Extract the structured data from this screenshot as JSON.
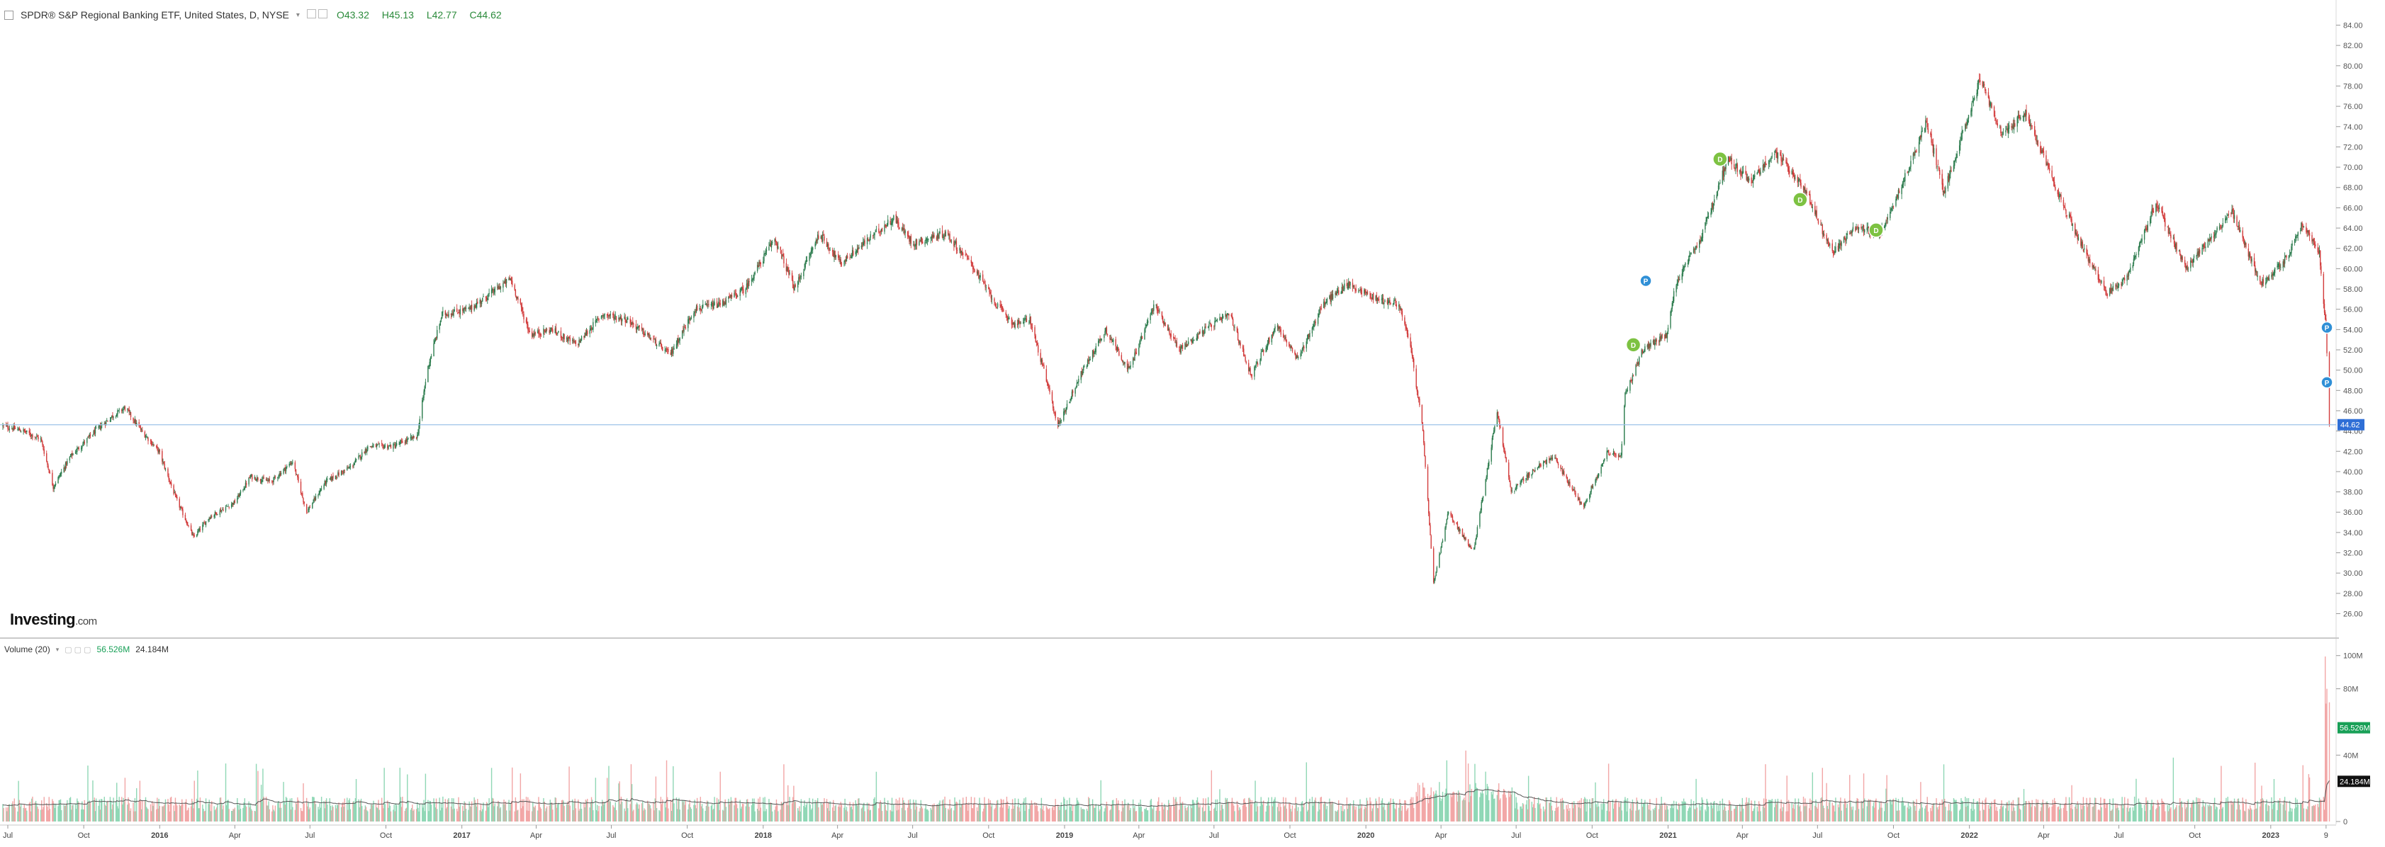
{
  "header": {
    "title": "SPDR® S&P Regional Banking ETF, United States, D, NYSE",
    "open": "O43.32",
    "high": "H45.13",
    "low": "L42.77",
    "close": "C44.62"
  },
  "logo": {
    "name": "Investing",
    "suffix": ".com"
  },
  "volume_header": {
    "label": "Volume (20)",
    "value1": "56.526M",
    "value2": "24.184M"
  },
  "current_price_label": "44.62",
  "volume_badges": {
    "green": "56.526M",
    "black": "24.184M"
  },
  "colors": {
    "up": "#2e7d4f",
    "down": "#d23c3c",
    "price_line": "#9ec3e8",
    "badge_blue": "#2f6fd6",
    "vol_up": "#8fd7b5",
    "vol_down": "#f2a6a6"
  },
  "markers": [
    {
      "type": "D",
      "date": "2020-11-20",
      "price": 52.5,
      "color": "#7dc242"
    },
    {
      "type": "D",
      "date": "2021-03-05",
      "price": 70.8,
      "color": "#7dc242"
    },
    {
      "type": "D",
      "date": "2021-06-10",
      "price": 66.8,
      "color": "#7dc242"
    },
    {
      "type": "D",
      "date": "2021-09-10",
      "price": 63.8,
      "color": "#7dc242"
    },
    {
      "type": "P",
      "date": "2020-12-05",
      "price": 58.8,
      "color": "#2f8fd6"
    },
    {
      "type": "P",
      "date": "2023-03-10",
      "price": 54.2,
      "color": "#2f8fd6"
    },
    {
      "type": "P",
      "date": "2023-03-10",
      "price": 48.8,
      "color": "#2f8fd6"
    }
  ],
  "chart_data": {
    "type": "candlestick",
    "title": "SPDR® S&P Regional Banking ETF, United States, D, NYSE",
    "y_ticks": [
      26,
      28,
      30,
      32,
      34,
      36,
      38,
      40,
      42,
      44,
      46,
      48,
      50,
      52,
      54,
      56,
      58,
      60,
      62,
      64,
      66,
      68,
      70,
      72,
      74,
      76,
      78,
      80,
      82,
      84
    ],
    "y_range": [
      24.5,
      85.5
    ],
    "x_ticks": [
      {
        "label": "Jul",
        "date": "2015-07-01"
      },
      {
        "label": "Oct",
        "date": "2015-10-01"
      },
      {
        "label": "2016",
        "date": "2016-01-01"
      },
      {
        "label": "Apr",
        "date": "2016-04-01"
      },
      {
        "label": "Jul",
        "date": "2016-07-01"
      },
      {
        "label": "Oct",
        "date": "2016-10-01"
      },
      {
        "label": "2017",
        "date": "2017-01-01"
      },
      {
        "label": "Apr",
        "date": "2017-04-01"
      },
      {
        "label": "Jul",
        "date": "2017-07-01"
      },
      {
        "label": "Oct",
        "date": "2017-10-01"
      },
      {
        "label": "2018",
        "date": "2018-01-01"
      },
      {
        "label": "Apr",
        "date": "2018-04-01"
      },
      {
        "label": "Jul",
        "date": "2018-07-01"
      },
      {
        "label": "Oct",
        "date": "2018-10-01"
      },
      {
        "label": "2019",
        "date": "2019-01-01"
      },
      {
        "label": "Apr",
        "date": "2019-04-01"
      },
      {
        "label": "Jul",
        "date": "2019-07-01"
      },
      {
        "label": "Oct",
        "date": "2019-10-01"
      },
      {
        "label": "2020",
        "date": "2020-01-01"
      },
      {
        "label": "Apr",
        "date": "2020-04-01"
      },
      {
        "label": "Jul",
        "date": "2020-07-01"
      },
      {
        "label": "Oct",
        "date": "2020-10-01"
      },
      {
        "label": "2021",
        "date": "2021-01-01"
      },
      {
        "label": "Apr",
        "date": "2021-04-01"
      },
      {
        "label": "Jul",
        "date": "2021-07-01"
      },
      {
        "label": "Oct",
        "date": "2021-10-01"
      },
      {
        "label": "2022",
        "date": "2022-01-01"
      },
      {
        "label": "Apr",
        "date": "2022-04-01"
      },
      {
        "label": "Jul",
        "date": "2022-07-01"
      },
      {
        "label": "Oct",
        "date": "2022-10-01"
      },
      {
        "label": "2023",
        "date": "2023-01-01"
      },
      {
        "label": "9",
        "date": "2023-03-09"
      }
    ],
    "x_range": [
      "2015-06-25",
      "2023-03-16"
    ],
    "price_series": {
      "name": "Close (approx.)",
      "points": [
        [
          "2015-06-25",
          44.5
        ],
        [
          "2015-07-20",
          44.0
        ],
        [
          "2015-08-10",
          43.2
        ],
        [
          "2015-08-25",
          38.5
        ],
        [
          "2015-09-15",
          41.5
        ],
        [
          "2015-10-15",
          44.0
        ],
        [
          "2015-11-05",
          45.5
        ],
        [
          "2015-11-20",
          46.3
        ],
        [
          "2015-12-10",
          44.0
        ],
        [
          "2015-12-31",
          42.0
        ],
        [
          "2016-01-20",
          37.5
        ],
        [
          "2016-02-11",
          33.5
        ],
        [
          "2016-03-01",
          35.5
        ],
        [
          "2016-04-01",
          37.0
        ],
        [
          "2016-04-20",
          39.5
        ],
        [
          "2016-05-15",
          39.0
        ],
        [
          "2016-06-10",
          41.0
        ],
        [
          "2016-06-27",
          36.0
        ],
        [
          "2016-07-20",
          39.0
        ],
        [
          "2016-08-20",
          40.5
        ],
        [
          "2016-09-10",
          42.5
        ],
        [
          "2016-10-10",
          42.5
        ],
        [
          "2016-11-08",
          43.5
        ],
        [
          "2016-11-20",
          50.0
        ],
        [
          "2016-12-08",
          55.5
        ],
        [
          "2017-01-10",
          56.0
        ],
        [
          "2017-03-01",
          59.0
        ],
        [
          "2017-03-25",
          53.5
        ],
        [
          "2017-04-20",
          54.0
        ],
        [
          "2017-05-20",
          52.5
        ],
        [
          "2017-06-20",
          55.5
        ],
        [
          "2017-07-20",
          55.0
        ],
        [
          "2017-08-20",
          53.0
        ],
        [
          "2017-09-10",
          51.5
        ],
        [
          "2017-10-10",
          56.0
        ],
        [
          "2017-11-10",
          56.5
        ],
        [
          "2017-12-10",
          58.0
        ],
        [
          "2018-01-15",
          63.0
        ],
        [
          "2018-02-08",
          58.0
        ],
        [
          "2018-03-10",
          63.5
        ],
        [
          "2018-04-05",
          60.5
        ],
        [
          "2018-05-10",
          63.0
        ],
        [
          "2018-06-08",
          65.0
        ],
        [
          "2018-07-01",
          62.5
        ],
        [
          "2018-08-10",
          63.5
        ],
        [
          "2018-09-10",
          60.5
        ],
        [
          "2018-10-10",
          56.5
        ],
        [
          "2018-11-01",
          54.5
        ],
        [
          "2018-11-20",
          55.0
        ],
        [
          "2018-12-10",
          49.0
        ],
        [
          "2018-12-24",
          44.5
        ],
        [
          "2019-01-20",
          49.5
        ],
        [
          "2019-02-20",
          54.0
        ],
        [
          "2019-03-20",
          50.0
        ],
        [
          "2019-04-20",
          56.5
        ],
        [
          "2019-05-20",
          52.0
        ],
        [
          "2019-06-20",
          54.0
        ],
        [
          "2019-07-20",
          55.5
        ],
        [
          "2019-08-15",
          49.5
        ],
        [
          "2019-09-15",
          54.5
        ],
        [
          "2019-10-10",
          51.0
        ],
        [
          "2019-11-10",
          56.5
        ],
        [
          "2019-12-10",
          58.5
        ],
        [
          "2020-01-15",
          57.0
        ],
        [
          "2020-02-10",
          56.5
        ],
        [
          "2020-02-25",
          52.0
        ],
        [
          "2020-03-10",
          44.0
        ],
        [
          "2020-03-23",
          29.0
        ],
        [
          "2020-04-10",
          36.0
        ],
        [
          "2020-05-10",
          32.0
        ],
        [
          "2020-06-08",
          46.0
        ],
        [
          "2020-06-25",
          38.0
        ],
        [
          "2020-07-20",
          40.0
        ],
        [
          "2020-08-15",
          41.5
        ],
        [
          "2020-09-20",
          36.5
        ],
        [
          "2020-10-20",
          42.0
        ],
        [
          "2020-11-05",
          41.5
        ],
        [
          "2020-11-10",
          47.5
        ],
        [
          "2020-12-01",
          52.0
        ],
        [
          "2020-12-31",
          53.5
        ],
        [
          "2021-01-10",
          58.5
        ],
        [
          "2021-02-10",
          63.0
        ],
        [
          "2021-03-15",
          71.0
        ],
        [
          "2021-04-10",
          68.5
        ],
        [
          "2021-05-10",
          71.5
        ],
        [
          "2021-06-15",
          68.0
        ],
        [
          "2021-07-19",
          61.5
        ],
        [
          "2021-08-15",
          64.0
        ],
        [
          "2021-09-15",
          63.5
        ],
        [
          "2021-10-20",
          70.0
        ],
        [
          "2021-11-10",
          74.5
        ],
        [
          "2021-12-01",
          67.5
        ],
        [
          "2022-01-14",
          78.8
        ],
        [
          "2022-02-10",
          73.0
        ],
        [
          "2022-03-10",
          75.5
        ],
        [
          "2022-04-10",
          69.0
        ],
        [
          "2022-05-10",
          63.5
        ],
        [
          "2022-06-16",
          57.5
        ],
        [
          "2022-07-10",
          59.0
        ],
        [
          "2022-08-15",
          66.5
        ],
        [
          "2022-09-20",
          60.0
        ],
        [
          "2022-10-20",
          63.0
        ],
        [
          "2022-11-15",
          65.5
        ],
        [
          "2022-12-20",
          58.5
        ],
        [
          "2023-01-20",
          61.0
        ],
        [
          "2023-02-08",
          64.5
        ],
        [
          "2023-03-01",
          61.5
        ],
        [
          "2023-03-09",
          54.0
        ],
        [
          "2023-03-13",
          44.6
        ]
      ]
    },
    "volume_y_ticks": [
      {
        "label": "0",
        "v": 0
      },
      {
        "label": "40M",
        "v": 40
      },
      {
        "label": "80M",
        "v": 80
      },
      {
        "label": "100M",
        "v": 100
      }
    ],
    "volume_range": [
      0,
      105
    ]
  }
}
